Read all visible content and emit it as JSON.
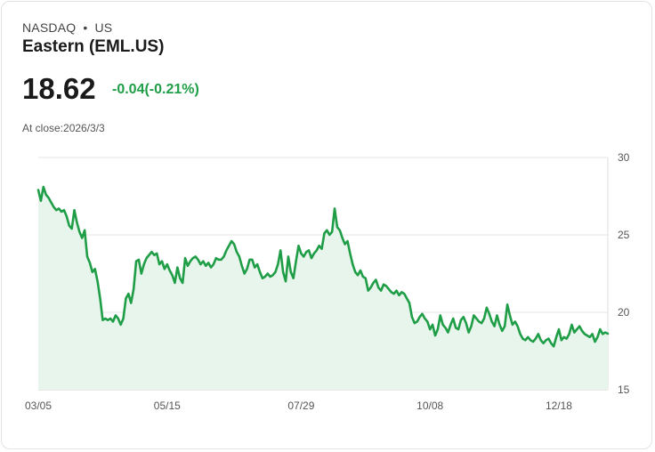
{
  "header": {
    "exchange": "NASDAQ",
    "separator": "•",
    "market": "US",
    "title": "Eastern (EML.US)",
    "price": "18.62",
    "change": "-0.04(-0.21%)",
    "as_of": "At close:2026/3/3"
  },
  "colors": {
    "line": "#1f9e47",
    "fill": "#e8f5ec",
    "change": "#1f9e47"
  },
  "chart_data": {
    "type": "area",
    "title": "Eastern (EML.US)",
    "xlabel": "",
    "ylabel": "",
    "ylim": [
      15,
      30
    ],
    "y_ticks": [
      15,
      20,
      25,
      30
    ],
    "x_tick_labels": [
      {
        "label": "03/05",
        "index": 0
      },
      {
        "label": "05/15",
        "index": 50
      },
      {
        "label": "07/29",
        "index": 102
      },
      {
        "label": "10/08",
        "index": 152
      },
      {
        "label": "12/18",
        "index": 202
      }
    ],
    "y_axis_position": "right",
    "grid": true,
    "series": [
      {
        "name": "EML.US",
        "values": [
          27.9,
          27.2,
          28.1,
          27.6,
          27.4,
          27.1,
          26.8,
          26.6,
          26.7,
          26.5,
          26.6,
          26.2,
          25.6,
          25.4,
          26.6,
          25.8,
          25.2,
          24.8,
          25.3,
          23.6,
          23.2,
          22.6,
          22.8,
          22.0,
          20.9,
          19.5,
          19.6,
          19.5,
          19.6,
          19.4,
          19.8,
          19.6,
          19.2,
          19.6,
          20.9,
          21.2,
          20.6,
          21.5,
          23.3,
          23.4,
          22.5,
          23.1,
          23.5,
          23.7,
          23.9,
          23.7,
          23.8,
          23.1,
          23.3,
          22.8,
          23.1,
          22.7,
          22.4,
          21.9,
          22.9,
          22.2,
          21.9,
          23.5,
          23.0,
          23.3,
          23.5,
          23.6,
          23.4,
          23.1,
          23.3,
          23.0,
          23.2,
          22.9,
          23.1,
          23.5,
          23.4,
          23.4,
          23.6,
          24.0,
          24.3,
          24.6,
          24.4,
          23.9,
          23.6,
          23.0,
          22.5,
          22.8,
          23.4,
          23.4,
          22.9,
          23.1,
          22.6,
          22.2,
          22.3,
          22.5,
          22.3,
          22.4,
          22.6,
          23.1,
          24.0,
          22.6,
          22.0,
          23.6,
          22.6,
          22.2,
          23.3,
          24.3,
          23.8,
          23.6,
          23.9,
          24.0,
          23.5,
          23.8,
          24.0,
          24.3,
          24.1,
          25.1,
          25.3,
          25.0,
          25.2,
          26.7,
          25.5,
          25.3,
          24.8,
          24.4,
          24.6,
          23.8,
          23.1,
          22.6,
          22.4,
          22.7,
          22.3,
          22.2,
          21.4,
          21.6,
          21.9,
          22.1,
          21.6,
          21.4,
          21.8,
          21.7,
          21.5,
          21.3,
          21.2,
          21.4,
          21.1,
          21.3,
          21.2,
          20.9,
          20.6,
          19.7,
          19.3,
          19.4,
          19.7,
          19.9,
          19.6,
          19.4,
          18.9,
          19.2,
          18.5,
          18.9,
          19.8,
          19.2,
          19.0,
          18.7,
          19.2,
          19.6,
          19.0,
          18.9,
          19.5,
          19.7,
          19.3,
          18.7,
          19.1,
          19.8,
          19.6,
          19.4,
          19.3,
          19.6,
          20.3,
          19.9,
          19.4,
          19.1,
          19.8,
          19.2,
          18.8,
          19.1,
          20.5,
          19.8,
          19.2,
          19.4,
          19.1,
          18.6,
          18.3,
          18.2,
          18.4,
          18.2,
          18.1,
          18.3,
          18.6,
          18.2,
          18.0,
          18.2,
          18.3,
          18.0,
          17.8,
          18.4,
          18.9,
          18.2,
          18.4,
          18.3,
          18.6,
          19.2,
          18.7,
          18.9,
          19.1,
          18.8,
          18.6,
          18.5,
          18.4,
          18.6,
          18.1,
          18.4,
          18.9,
          18.6,
          18.7,
          18.62
        ]
      }
    ]
  }
}
